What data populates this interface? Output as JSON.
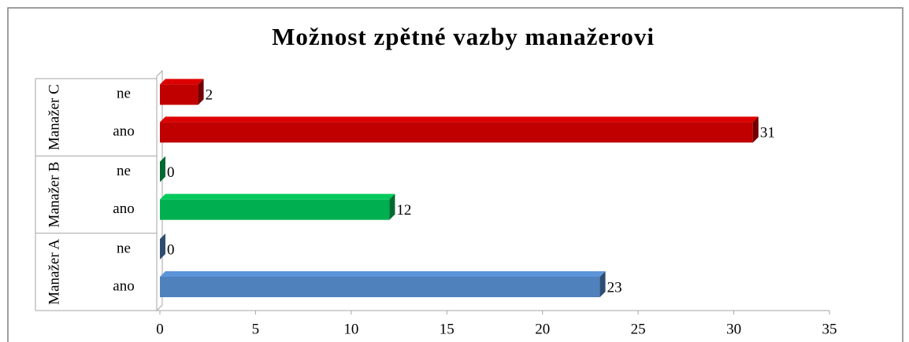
{
  "chart_data": {
    "type": "bar",
    "orientation": "horizontal",
    "title": "Možnost zpětné vazby manažerovi",
    "categories": [
      "ano",
      "ne"
    ],
    "series": [
      {
        "name": "Manažer A",
        "color": "#4f81bd",
        "values": [
          23,
          0
        ]
      },
      {
        "name": "Manažer B",
        "color": "#00b050",
        "values": [
          12,
          0
        ]
      },
      {
        "name": "Manažer C",
        "color": "#c00000",
        "values": [
          31,
          2
        ]
      }
    ],
    "xlim": [
      0,
      35
    ],
    "xticks": [
      0,
      5,
      10,
      15,
      20,
      25,
      30,
      35
    ],
    "grid": false
  }
}
